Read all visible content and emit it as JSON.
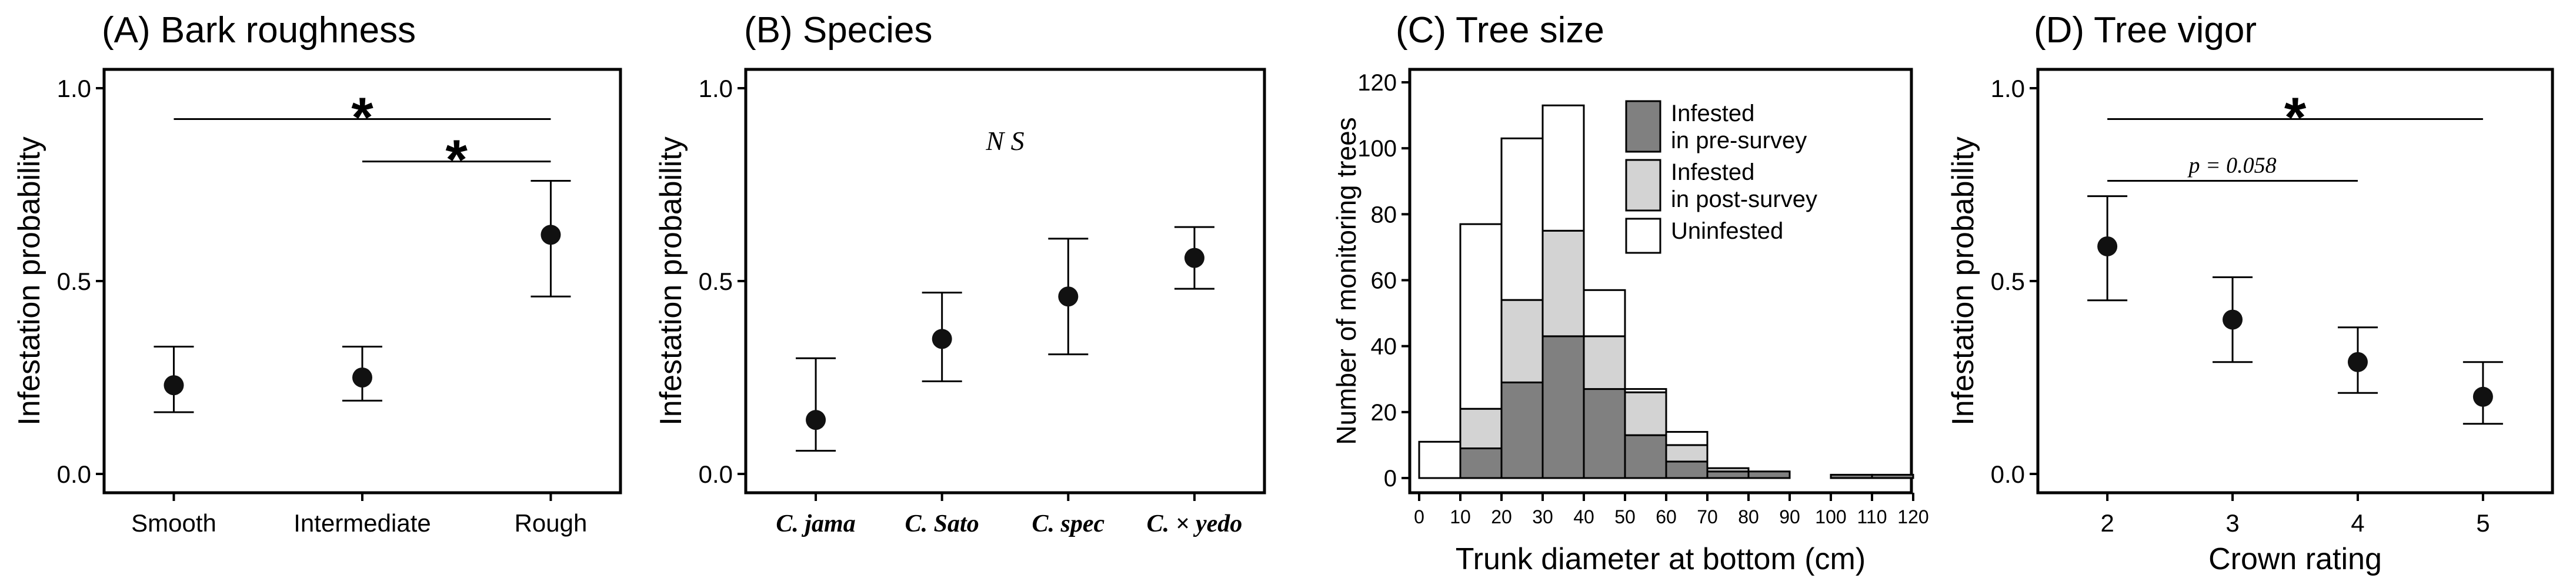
{
  "chart_data": [
    {
      "type": "scatter",
      "panel": "A",
      "title": "(A) Bark roughness",
      "ylabel": "Infestation probability",
      "xlabel": "",
      "ylim": [
        0,
        1
      ],
      "yticks": [
        0,
        0.5,
        1
      ],
      "yticklabels": [
        "0.0",
        "0.5",
        "1.0"
      ],
      "categories": [
        "Smooth",
        "Intermediate",
        "Rough"
      ],
      "values": [
        0.23,
        0.25,
        0.62
      ],
      "lower": [
        0.16,
        0.19,
        0.46
      ],
      "upper": [
        0.33,
        0.33,
        0.76
      ],
      "annotations": [
        {
          "from": 0,
          "to": 2,
          "y": 0.92,
          "label": "*"
        },
        {
          "from": 1,
          "to": 2,
          "y": 0.81,
          "label": "*"
        }
      ]
    },
    {
      "type": "scatter",
      "panel": "B",
      "title": "(B) Species",
      "ylabel": "Infestation probability",
      "xlabel": "",
      "ylim": [
        0,
        1
      ],
      "yticks": [
        0,
        0.5,
        1
      ],
      "yticklabels": [
        "0.0",
        "0.5",
        "1.0"
      ],
      "categories": [
        "C. jama",
        "C. Sato",
        "C. spec",
        "C. × yedo"
      ],
      "values": [
        0.14,
        0.35,
        0.46,
        0.56
      ],
      "lower": [
        0.06,
        0.24,
        0.31,
        0.48
      ],
      "upper": [
        0.3,
        0.47,
        0.61,
        0.64
      ],
      "note": "N S"
    },
    {
      "type": "bar",
      "panel": "C",
      "title": "(C) Tree size",
      "ylabel": "Number of monitoring trees",
      "xlabel": "Trunk diameter at bottom (cm)",
      "ylim": [
        0,
        125
      ],
      "yticks": [
        0,
        20,
        40,
        60,
        80,
        100,
        120
      ],
      "xticks": [
        0,
        10,
        20,
        30,
        40,
        50,
        60,
        70,
        80,
        90,
        100,
        110,
        120
      ],
      "bins": [
        [
          0,
          10
        ],
        [
          10,
          20
        ],
        [
          20,
          30
        ],
        [
          30,
          40
        ],
        [
          40,
          50
        ],
        [
          50,
          60
        ],
        [
          60,
          70
        ],
        [
          70,
          80
        ],
        [
          80,
          90
        ],
        [
          90,
          100
        ],
        [
          100,
          110
        ],
        [
          110,
          120
        ]
      ],
      "series": [
        {
          "name": "Infested\nin pre-survey",
          "color": "#808080",
          "values": [
            0,
            9,
            29,
            43,
            27,
            13,
            5,
            2,
            2,
            0,
            1,
            1
          ]
        },
        {
          "name": "Infested\nin post-survey",
          "color": "#d3d3d3",
          "values": [
            0,
            12,
            25,
            32,
            16,
            13,
            5,
            1,
            0,
            0,
            0,
            0
          ]
        },
        {
          "name": "Uninfested",
          "color": "#ffffff",
          "values": [
            11,
            56,
            49,
            38,
            14,
            1,
            4,
            0,
            0,
            0,
            0,
            0
          ]
        }
      ],
      "legend": [
        "Infested",
        "in pre-survey",
        "Infested",
        "in post-survey",
        "Uninfested"
      ],
      "legend_position": "top-right",
      "stacked": true
    },
    {
      "type": "scatter",
      "panel": "D",
      "title": "(D) Tree vigor",
      "ylabel": "Infestation probability",
      "xlabel": "Crown rating",
      "ylim": [
        0,
        1
      ],
      "yticks": [
        0,
        0.5,
        1
      ],
      "yticklabels": [
        "0.0",
        "0.5",
        "1.0"
      ],
      "categories": [
        "2",
        "3",
        "4",
        "5"
      ],
      "values": [
        0.59,
        0.4,
        0.29,
        0.2
      ],
      "lower": [
        0.45,
        0.29,
        0.21,
        0.13
      ],
      "upper": [
        0.72,
        0.51,
        0.38,
        0.29
      ],
      "annotations": [
        {
          "from": 0,
          "to": 3,
          "y": 0.92,
          "label": "*"
        },
        {
          "from": 0,
          "to": 2,
          "y": 0.76,
          "label": "p = 0.058"
        }
      ]
    }
  ]
}
